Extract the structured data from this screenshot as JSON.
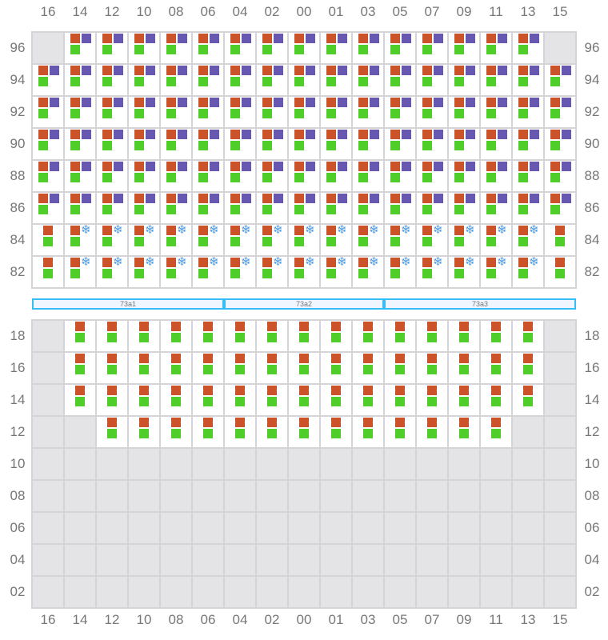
{
  "columns": [
    "16",
    "14",
    "12",
    "10",
    "08",
    "06",
    "04",
    "02",
    "00",
    "01",
    "03",
    "05",
    "07",
    "09",
    "11",
    "13",
    "15"
  ],
  "colors": {
    "orange": "#cc5229",
    "purple": "#6658b0",
    "green": "#4fce2a",
    "reefer": "#4a9be8",
    "empty": "#e4e4e7",
    "grid": "#d4d4d8",
    "bay_border": "#38bdf8"
  },
  "reefer_icon": "❄",
  "upper_deck": {
    "rows": [
      {
        "label": "96",
        "cells": "E OPG OPG OPG OPG OPG OPG OPG OPG OPG OPG OPG OPG OPG OPG OPG E"
      },
      {
        "label": "94",
        "cells": "OPG OPG OPG OPG OPG OPG OPG OPG OPG OPG OPG OPG OPG OPG OPG OPG OPG"
      },
      {
        "label": "92",
        "cells": "OPG OPG OPG OPG OPG OPG OPG OPG OPG OPG OPG OPG OPG OPG OPG OPG OPG"
      },
      {
        "label": "90",
        "cells": "OPG OPG OPG OPG OPG OPG OPG OPG OPG OPG OPG OPG OPG OPG OPG OPG OPG"
      },
      {
        "label": "88",
        "cells": "OPG OPG OPG OPG OPG OPG OPG OPG OPG OPG OPG OPG OPG OPG OPG OPG OPG"
      },
      {
        "label": "86",
        "cells": "OPG OPG OPG OPG OPG OPG OPG OPG OPG OPG OPG OPG OPG OPG OPG OPG OPG"
      },
      {
        "label": "84",
        "cells": "OG OSG OSG OSG OSG OSG OSG OSG OSG OSG OSG OSG OSG OSG OSG OSG OG"
      },
      {
        "label": "82",
        "cells": "OG OSG OSG OSG OSG OSG OSG OSG OSG OSG OSG OSG OSG OSG OSG OSG OG"
      }
    ]
  },
  "bays": [
    {
      "label": "73a1"
    },
    {
      "label": "73a2"
    },
    {
      "label": "73a3"
    }
  ],
  "lower_hold": {
    "rows": [
      {
        "label": "18",
        "cells": "E OG OG OG OG OG OG OG OG OG OG OG OG OG OG OG E"
      },
      {
        "label": "16",
        "cells": "E OG OG OG OG OG OG OG OG OG OG OG OG OG OG OG E"
      },
      {
        "label": "14",
        "cells": "E OG OG OG OG OG OG OG OG OG OG OG OG OG OG OG E"
      },
      {
        "label": "12",
        "cells": "E E OG OG OG OG OG OG OG OG OG OG OG OG OG E E"
      },
      {
        "label": "10",
        "cells": "E E E E E E E E E E E E E E E E E"
      },
      {
        "label": "08",
        "cells": "E E E E E E E E E E E E E E E E E"
      },
      {
        "label": "06",
        "cells": "E E E E E E E E E E E E E E E E E"
      },
      {
        "label": "04",
        "cells": "E E E E E E E E E E E E E E E E E"
      },
      {
        "label": "02",
        "cells": "E E E E E E E E E E E E E E E E E"
      }
    ]
  }
}
